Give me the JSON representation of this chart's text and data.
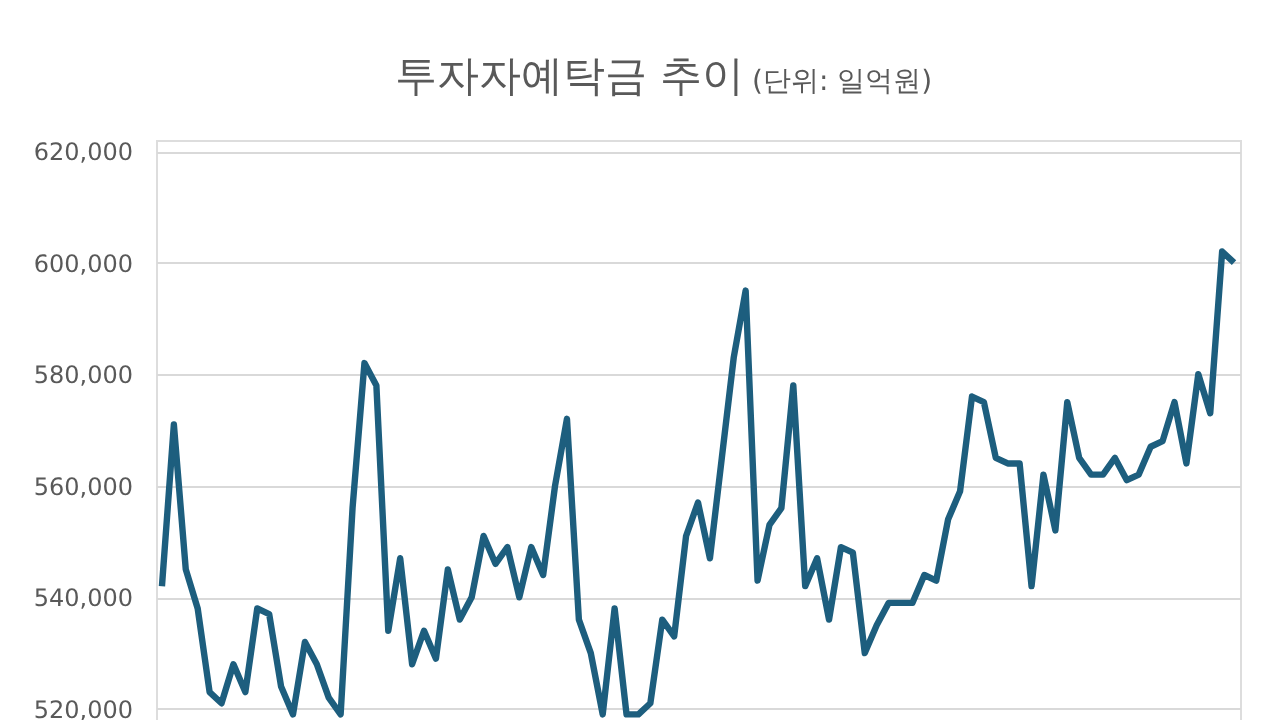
{
  "chart_data": {
    "type": "line",
    "title": "투자자예탁금 추이",
    "subtitle": "(단위: 일억원)",
    "categories": [
      null,
      null,
      null,
      null,
      null,
      null,
      null,
      null,
      null,
      null,
      null,
      null,
      null,
      null,
      null,
      null,
      null,
      null,
      null,
      null,
      null,
      null,
      null,
      null,
      null,
      null,
      null,
      null,
      null,
      null,
      null,
      null,
      null,
      null,
      null,
      null,
      null,
      null,
      null,
      null,
      null,
      null,
      null,
      null,
      null,
      null,
      null,
      null,
      null,
      null,
      null,
      null,
      null,
      null,
      null,
      null,
      null,
      null,
      null,
      null,
      null,
      null,
      null,
      null,
      null,
      null,
      null,
      null,
      null,
      null,
      null,
      null,
      null,
      null,
      null,
      null,
      null,
      null,
      null,
      null,
      null,
      null,
      null,
      null,
      null,
      null,
      null,
      null,
      null,
      null,
      null
    ],
    "series": [
      {
        "color": "#1d5e7e",
        "values": [
          542000,
          571000,
          545000,
          538000,
          523000,
          521000,
          528000,
          523000,
          538000,
          537000,
          524000,
          519000,
          532000,
          528000,
          522000,
          519000,
          556000,
          582000,
          578000,
          534000,
          547000,
          528000,
          534000,
          529000,
          545000,
          536000,
          540000,
          551000,
          546000,
          549000,
          540000,
          549000,
          544000,
          560000,
          572000,
          536000,
          530000,
          519000,
          538000,
          519000,
          519000,
          521000,
          536000,
          533000,
          551000,
          557000,
          547000,
          565000,
          583000,
          595000,
          543000,
          553000,
          556000,
          578000,
          542000,
          547000,
          536000,
          549000,
          548000,
          530000,
          535000,
          539000,
          539000,
          539000,
          544000,
          543000,
          554000,
          559000,
          576000,
          575000,
          565000,
          564000,
          564000,
          542000,
          562000,
          552000,
          575000,
          565000,
          562000,
          562000,
          565000,
          561000,
          562000,
          567000,
          568000,
          575000,
          564000,
          580000,
          573000,
          602000,
          600000
        ]
      }
    ],
    "ylim": [
      518000,
      622000
    ],
    "yticks": [
      {
        "value": 520000,
        "label": "520,000"
      },
      {
        "value": 540000,
        "label": "540,000"
      },
      {
        "value": 560000,
        "label": "560,000"
      },
      {
        "value": 580000,
        "label": "580,000"
      },
      {
        "value": 600000,
        "label": "600,000"
      },
      {
        "value": 620000,
        "label": "620,000"
      }
    ],
    "grid": "y",
    "tick_labels": "y",
    "line_style": "solid",
    "marker": "none"
  }
}
